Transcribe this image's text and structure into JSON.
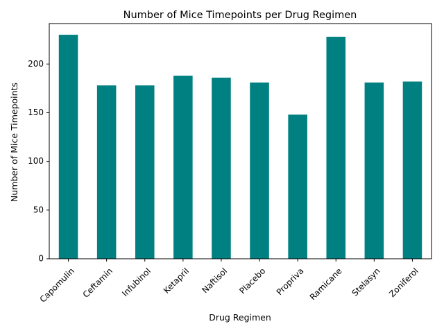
{
  "chart_data": {
    "type": "bar",
    "title": "Number of Mice Timepoints per Drug Regimen",
    "xlabel": "Drug Regimen",
    "ylabel": "Number of Mice Timepoints",
    "categories": [
      "Capomulin",
      "Ceftamin",
      "Infubinol",
      "Ketapril",
      "Naftisol",
      "Placebo",
      "Propriva",
      "Ramicane",
      "Stelasyn",
      "Zoniferol"
    ],
    "values": [
      230,
      178,
      178,
      188,
      186,
      181,
      148,
      228,
      181,
      182
    ],
    "ylim": [
      0,
      241.5
    ],
    "yticks": [
      0,
      50,
      100,
      150,
      200
    ],
    "bar_color": "#008080",
    "grid": false,
    "legend": false
  }
}
